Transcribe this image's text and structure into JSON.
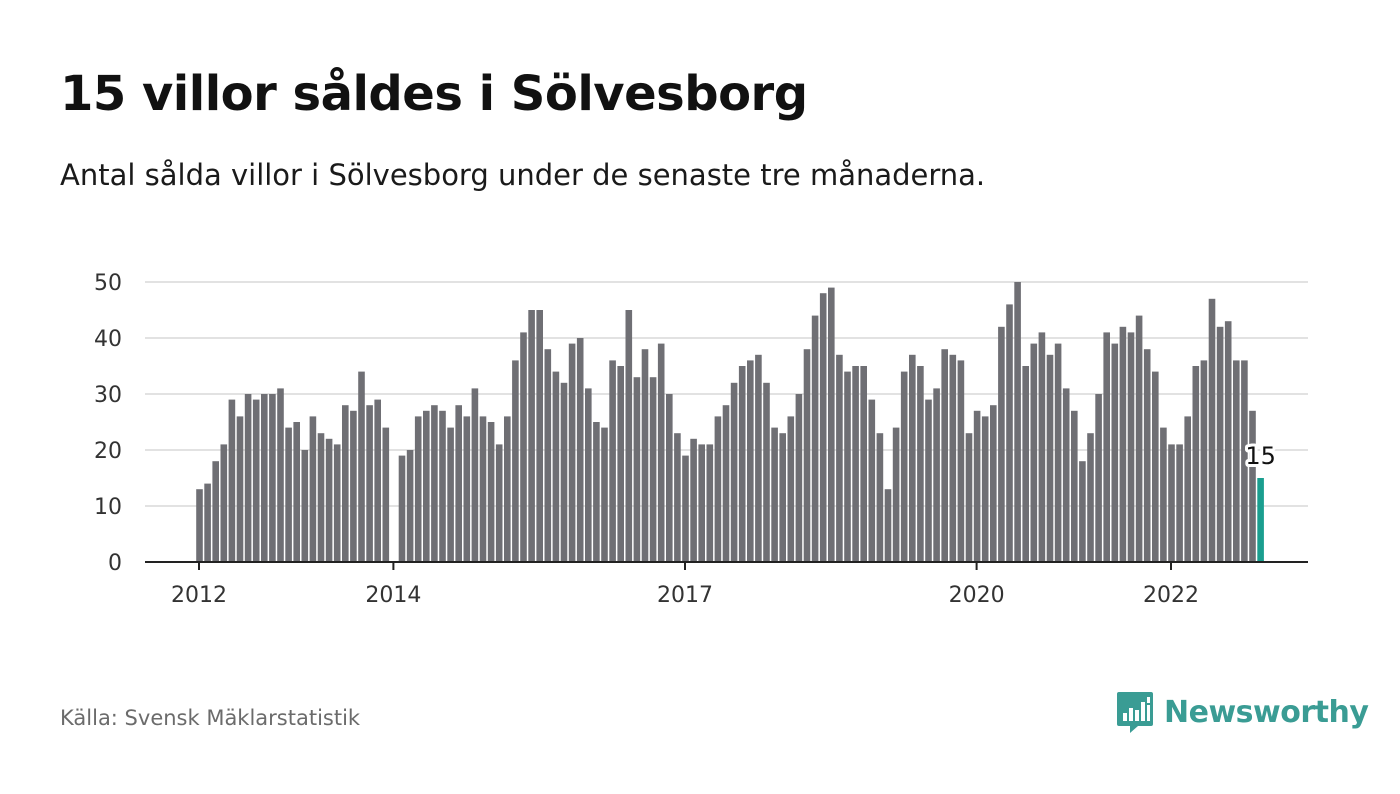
{
  "title": "15 villor såldes i Sölvesborg",
  "subtitle": "Antal sålda villor i Sölvesborg under de senaste tre månaderna.",
  "source": "Källa: Svensk Mäklarstatistik",
  "brand": {
    "name": "Newsworthy",
    "icon": "newsworthy-logo-icon",
    "color": "#3a9c94"
  },
  "colors": {
    "bar": "#6f6f74",
    "highlight": "#1a9e8f",
    "grid": "#d9d9d9",
    "axis": "#222222",
    "tick_text": "#333333"
  },
  "chart_data": {
    "type": "bar",
    "grid": true,
    "ylim": [
      0,
      50
    ],
    "yticks": [
      0,
      10,
      20,
      30,
      40,
      50
    ],
    "xticks": [
      "2012",
      "2014",
      "2017",
      "2020",
      "2022"
    ],
    "highlight_label": "15",
    "values": [
      13,
      14,
      18,
      21,
      29,
      26,
      30,
      29,
      30,
      30,
      31,
      24,
      25,
      20,
      26,
      23,
      22,
      21,
      28,
      27,
      34,
      28,
      29,
      24,
      null,
      19,
      20,
      26,
      27,
      28,
      27,
      24,
      28,
      26,
      31,
      26,
      25,
      21,
      26,
      36,
      41,
      45,
      45,
      38,
      34,
      32,
      39,
      40,
      31,
      25,
      24,
      36,
      35,
      45,
      33,
      38,
      33,
      39,
      30,
      23,
      19,
      22,
      21,
      21,
      26,
      28,
      32,
      35,
      36,
      37,
      32,
      24,
      23,
      26,
      30,
      38,
      44,
      48,
      49,
      37,
      34,
      35,
      35,
      29,
      23,
      13,
      24,
      34,
      37,
      35,
      29,
      31,
      38,
      37,
      36,
      23,
      27,
      26,
      28,
      42,
      46,
      50,
      35,
      39,
      41,
      37,
      39,
      31,
      27,
      18,
      23,
      30,
      41,
      39,
      42,
      41,
      44,
      38,
      34,
      24,
      21,
      21,
      26,
      35,
      36,
      47,
      42,
      43,
      36,
      36,
      27,
      15
    ]
  }
}
